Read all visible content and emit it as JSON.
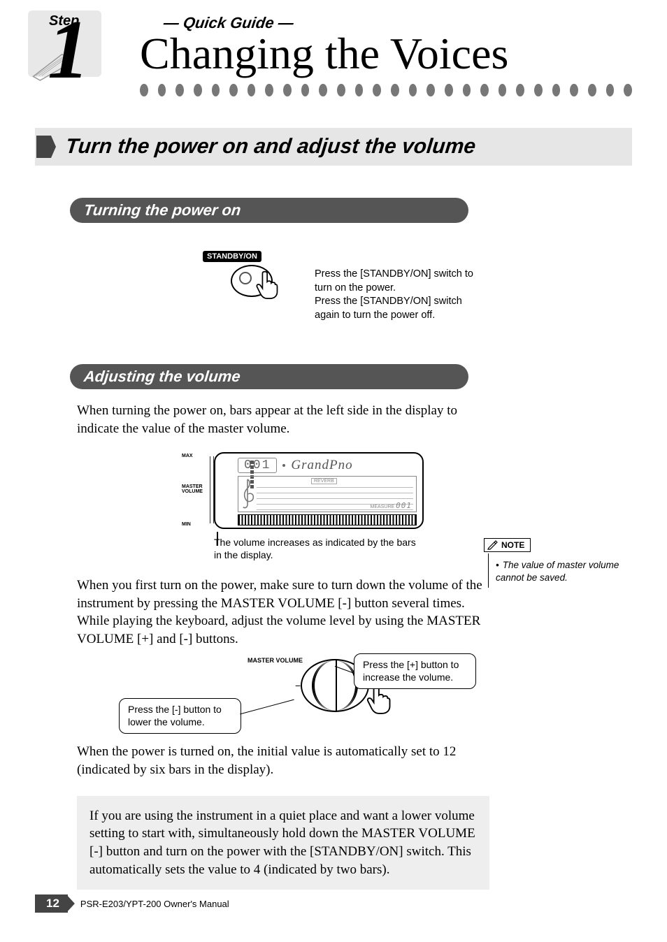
{
  "header": {
    "step_label": "Step",
    "step_number": "1",
    "quick_guide": "— Quick Guide —",
    "title": "Changing the Voices",
    "dot_count": 28,
    "dot_color": "#777777"
  },
  "section1": {
    "title": "Turn the power on and adjust the volume"
  },
  "sub1": {
    "title": "Turning the power on",
    "standby_label": "STANDBY/ON",
    "caption": "Press the [STANDBY/ON] switch to turn on the power.\nPress the [STANDBY/ON] switch again to turn the power off."
  },
  "sub2": {
    "title": "Adjusting the volume",
    "intro": "When turning the power on, bars appear at the left side in the display to indicate the value of the master volume.",
    "display": {
      "max_label": "MAX",
      "master_label": "MASTER\nVOLUME",
      "min_label": "MIN",
      "seg_value": "001",
      "voice_name": "GrandPno",
      "reverb_label": "REVERB",
      "measure_label": "MEASURE",
      "measure_val": "001",
      "bar_count": 6
    },
    "display_caption": "The volume increases as indicated by the bars in the display.",
    "para2": "When you first turn on the power, make sure to turn down the volume of the instrument by pressing the MASTER VOLUME [-] button several times. While playing the keyboard, adjust the volume level by using the MASTER VOLUME [+] and [-] buttons.",
    "vol_label": "MASTER VOLUME",
    "callout_minus": "Press the [-] button to lower the volume.",
    "callout_plus": "Press the [+] button to increase the volume.",
    "para3": "When the power is turned on, the initial value is automatically set to 12 (indicated by six bars in the display).",
    "tip": "If you are using the instrument in a quiet place and want a lower volume setting to start with, simultaneously hold down the MASTER VOLUME [-] button and turn on the power with the [STANDBY/ON] switch.  This automatically sets the value to 4 (indicated by two bars)."
  },
  "note": {
    "heading": "NOTE",
    "text": "The value of master volume cannot be saved."
  },
  "footer": {
    "page": "12",
    "model": "PSR-E203/YPT-200   Owner's Manual"
  },
  "colors": {
    "section_bg": "#e6e6e6",
    "pill_bg": "#555555",
    "tip_bg": "#eeeeee",
    "pagenum_bg": "#444444"
  }
}
